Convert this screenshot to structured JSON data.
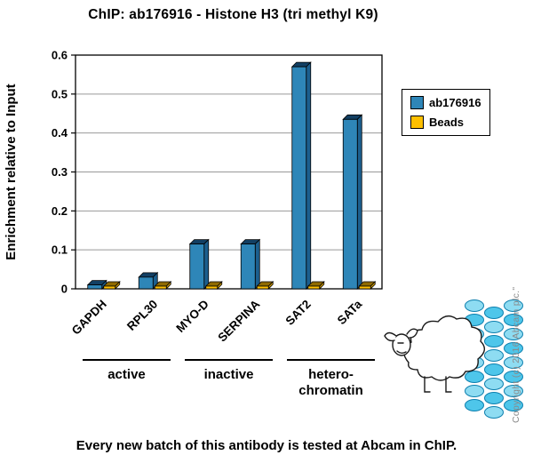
{
  "title": "ChIP: ab176916 - Histone H3 (tri methyl K9)",
  "caption": "Every new batch of this antibody is tested at Abcam in ChIP.",
  "copyright": "Copyright (c) 2016 Abcam plc.\"",
  "chart_data": {
    "type": "bar",
    "title": "ChIP: ab176916 - Histone H3 (tri methyl K9)",
    "categories": [
      "GAPDH",
      "RPL30",
      "MYO-D",
      "SERPINA",
      "SAT2",
      "SATa"
    ],
    "series": [
      {
        "name": "ab176916",
        "color": "#2e86b8",
        "color_top": "#123f63",
        "color_side": "#1c5f8e",
        "values": [
          0.01,
          0.03,
          0.115,
          0.115,
          0.57,
          0.435
        ]
      },
      {
        "name": "Beads",
        "color": "#ffc000",
        "color_top": "#8f6a00",
        "color_side": "#c79400",
        "values": [
          0.005,
          0.005,
          0.005,
          0.005,
          0.005,
          0.005
        ]
      }
    ],
    "ylabel": "Enrichment relative to Input",
    "ylim": [
      0,
      0.6
    ],
    "yticks": [
      0,
      0.1,
      0.2,
      0.3,
      0.4,
      0.5,
      0.6
    ],
    "grid": true,
    "legend_position": "right",
    "groups": [
      {
        "label": "active",
        "span": [
          0,
          1
        ]
      },
      {
        "label": "inactive",
        "span": [
          2,
          3
        ]
      },
      {
        "label": "hetero-\nchromatin",
        "span": [
          4,
          5
        ]
      }
    ]
  }
}
